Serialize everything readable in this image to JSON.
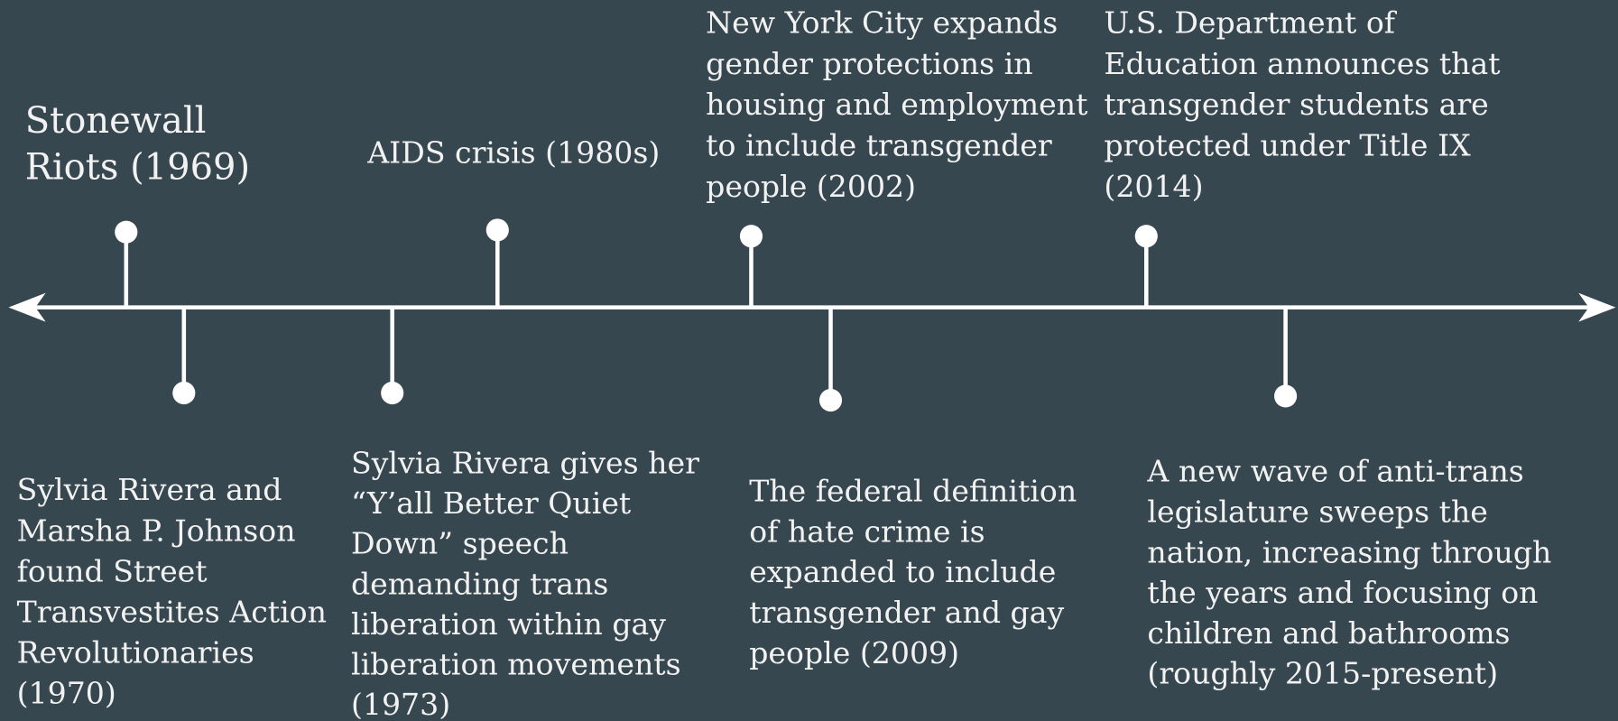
{
  "events": [
    {
      "lines": [
        "Stonewall",
        "Riots (1969)"
      ]
    },
    {
      "lines": [
        "AIDS crisis (1980s)"
      ]
    },
    {
      "lines": [
        "New York City expands",
        "gender protections in",
        "housing and employment",
        "to include transgender",
        "people (2002)"
      ]
    },
    {
      "lines": [
        "U.S. Department of",
        "Education announces that",
        "transgender students are",
        "protected under Title IX",
        "(2014)"
      ]
    },
    {
      "lines": [
        "Sylvia Rivera and",
        "Marsha P. Johnson",
        "found Street",
        "Transvestites Action",
        "Revolutionaries",
        "(1970)"
      ]
    },
    {
      "lines": [
        "Sylvia Rivera gives her",
        "“Y’all Better Quiet",
        "Down” speech",
        "demanding trans",
        "liberation within gay",
        "liberation movements",
        "(1973)"
      ]
    },
    {
      "lines": [
        "The federal definition",
        "of hate crime is",
        "expanded to include",
        "transgender and gay",
        "people (2009)"
      ]
    },
    {
      "lines": [
        "A new wave of anti-trans",
        "legislature sweeps the",
        "nation, increasing through",
        "the years and focusing on",
        "children and bathrooms",
        "(roughly 2015-present)"
      ]
    }
  ]
}
